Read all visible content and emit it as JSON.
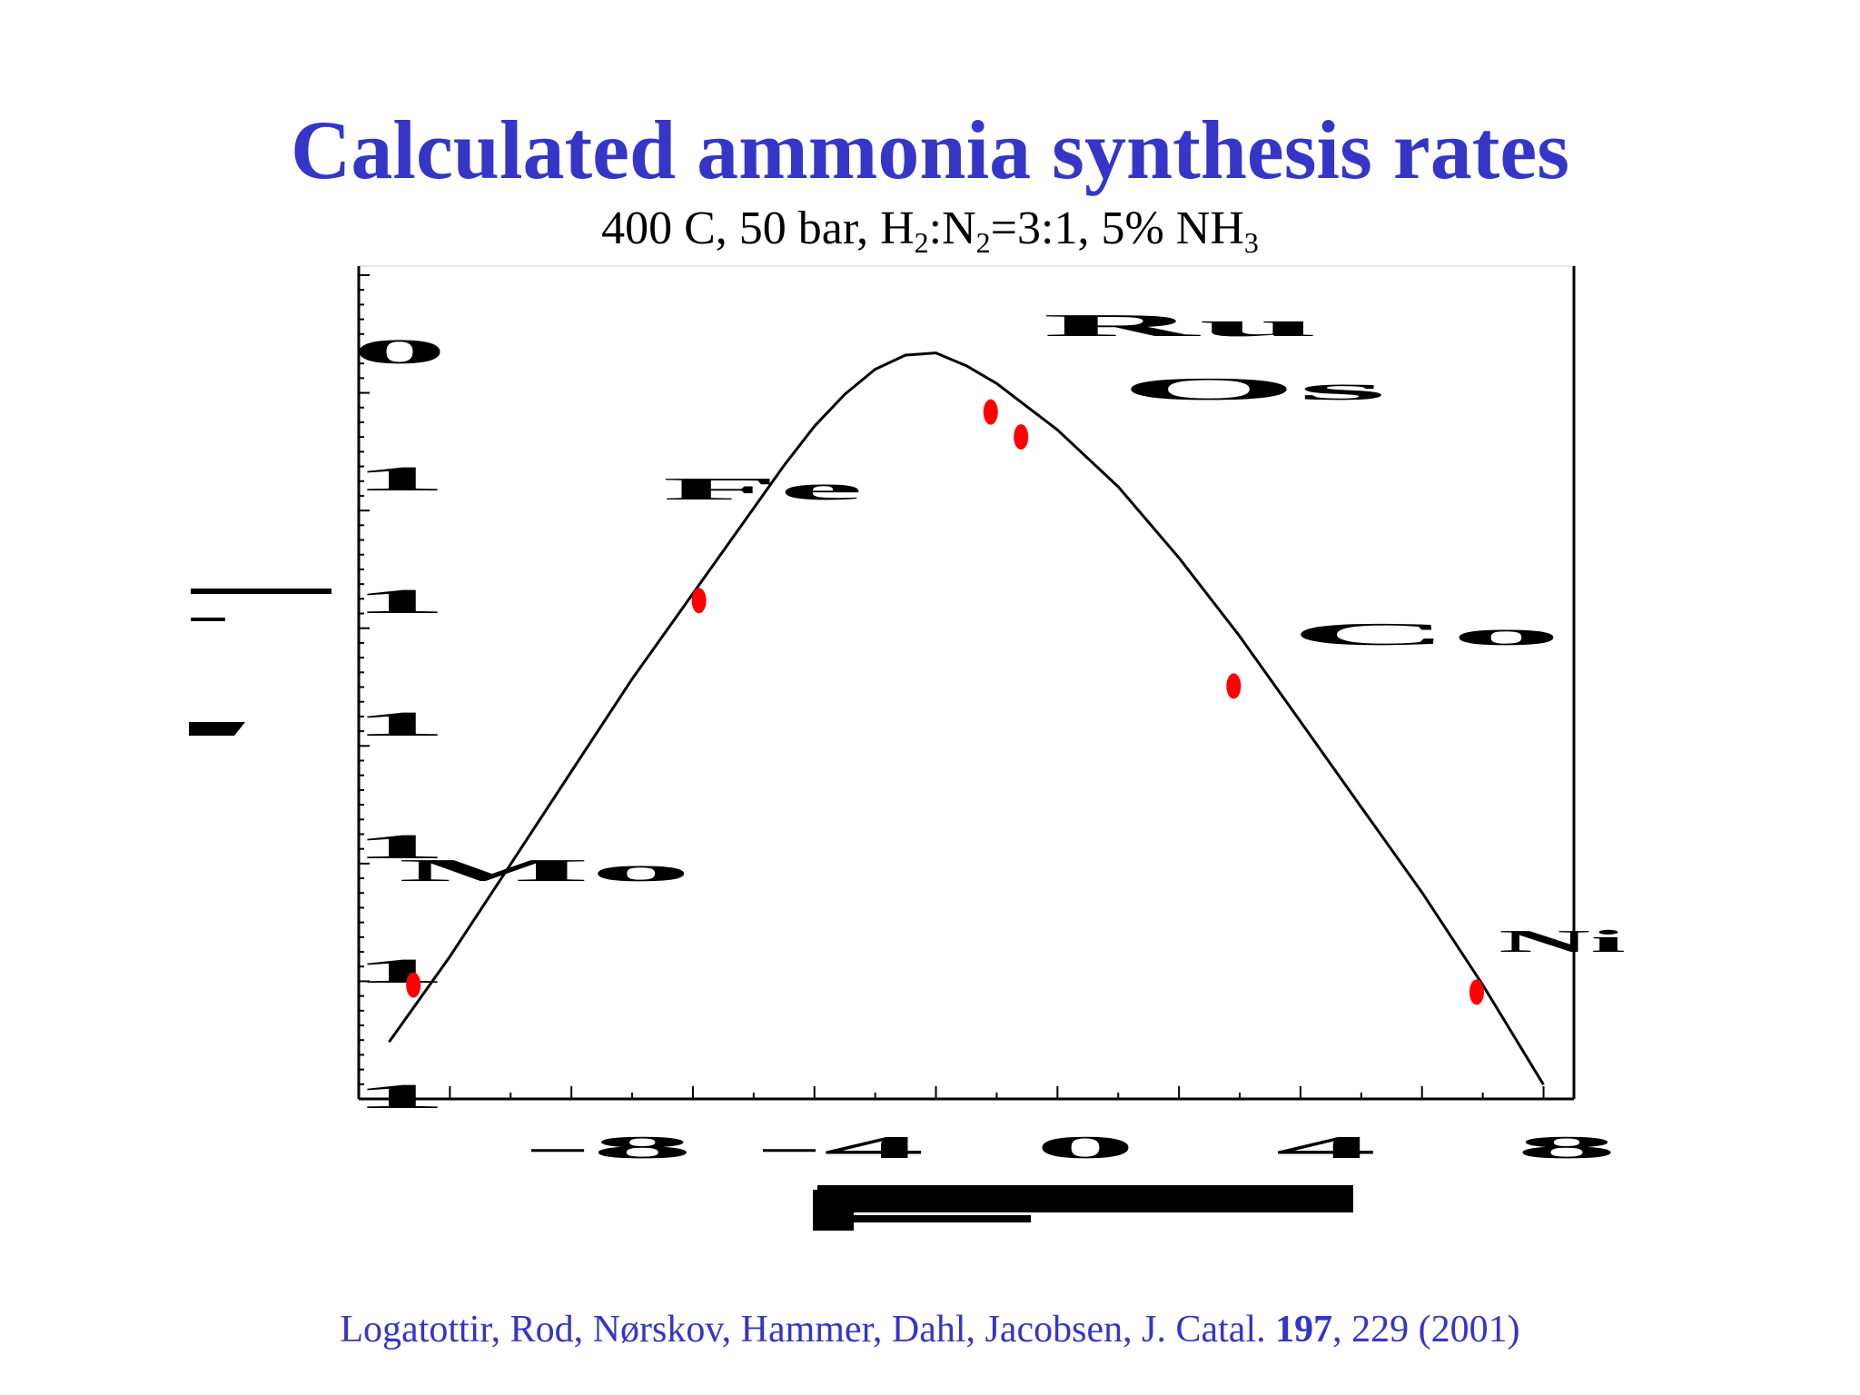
{
  "slide": {
    "title": "Calculated ammonia synthesis rates",
    "subtitle_parts": [
      "400 C, 50 bar, H",
      "2",
      ":N",
      "2",
      "=3:1, 5% NH",
      "3"
    ],
    "citation_authors": "Logatottir, Rod, Nørskov, Hammer, Dahl, Jacobsen, J. Catal. ",
    "citation_volume": "197",
    "citation_rest": ", 229 (2001)"
  },
  "chart_data": {
    "type": "line",
    "title": "",
    "xlabel": "",
    "ylabel": "",
    "series": [
      {
        "style": "line",
        "color": "#000000",
        "x": [
          -90,
          -80,
          -70,
          -60,
          -50,
          -40,
          -30,
          -25,
          -20,
          -15,
          -10,
          -5,
          0,
          5,
          10,
          20,
          30,
          40,
          50,
          60,
          70,
          80,
          90,
          100
        ],
        "y": [
          0.3,
          1.5,
          2.8,
          4.1,
          5.4,
          6.6,
          7.8,
          8.4,
          8.95,
          9.4,
          9.75,
          9.95,
          9.98,
          9.8,
          9.55,
          8.9,
          8.1,
          7.1,
          6.0,
          4.8,
          3.6,
          2.4,
          1.1,
          -0.3
        ]
      },
      {
        "style": "points",
        "color": "#ff0000",
        "x": [
          -86,
          -39,
          9,
          14,
          49,
          89
        ],
        "y": [
          1.1,
          6.5,
          9.15,
          8.8,
          5.3,
          1.0
        ]
      }
    ],
    "xlim": [
      -95,
      105
    ],
    "ylim": [
      -0.5,
      11.2
    ],
    "x_tick_labels": [
      "-8",
      "-4",
      "0",
      "4",
      "8"
    ],
    "y_tick_labels": [
      "0",
      "1",
      "1",
      "1",
      "1",
      "1",
      "1"
    ],
    "grid": false,
    "legend": "none",
    "point_labels": [
      "Fe",
      "Ru",
      "Os",
      "Co",
      "Mo",
      "Ni"
    ]
  }
}
